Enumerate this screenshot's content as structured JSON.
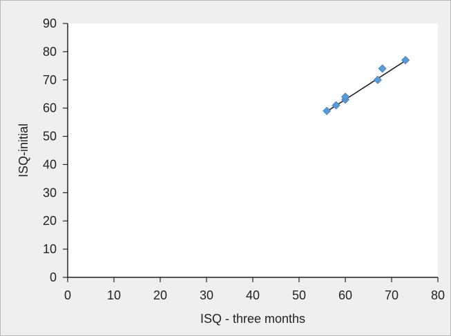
{
  "chart_data": {
    "type": "scatter",
    "title": "",
    "xlabel": "ISQ - three months",
    "ylabel": "ISQ-initial",
    "xlim": [
      0,
      80
    ],
    "ylim": [
      0,
      90
    ],
    "xticks": [
      "0",
      "10",
      "20",
      "30",
      "40",
      "50",
      "60",
      "70",
      "80"
    ],
    "yticks": [
      "0",
      "10",
      "20",
      "30",
      "40",
      "50",
      "60",
      "70",
      "80",
      "90"
    ],
    "grid": false,
    "legend": "none",
    "series": [
      {
        "x": [
          56,
          58,
          60,
          60,
          67,
          68,
          73
        ],
        "y": [
          59,
          61,
          63,
          64,
          70,
          74,
          77
        ],
        "color": "#5b9bd5"
      }
    ],
    "trendline": {
      "x": [
        56,
        73
      ],
      "y": [
        58.8,
        76.8
      ],
      "color": "#231f20"
    }
  }
}
